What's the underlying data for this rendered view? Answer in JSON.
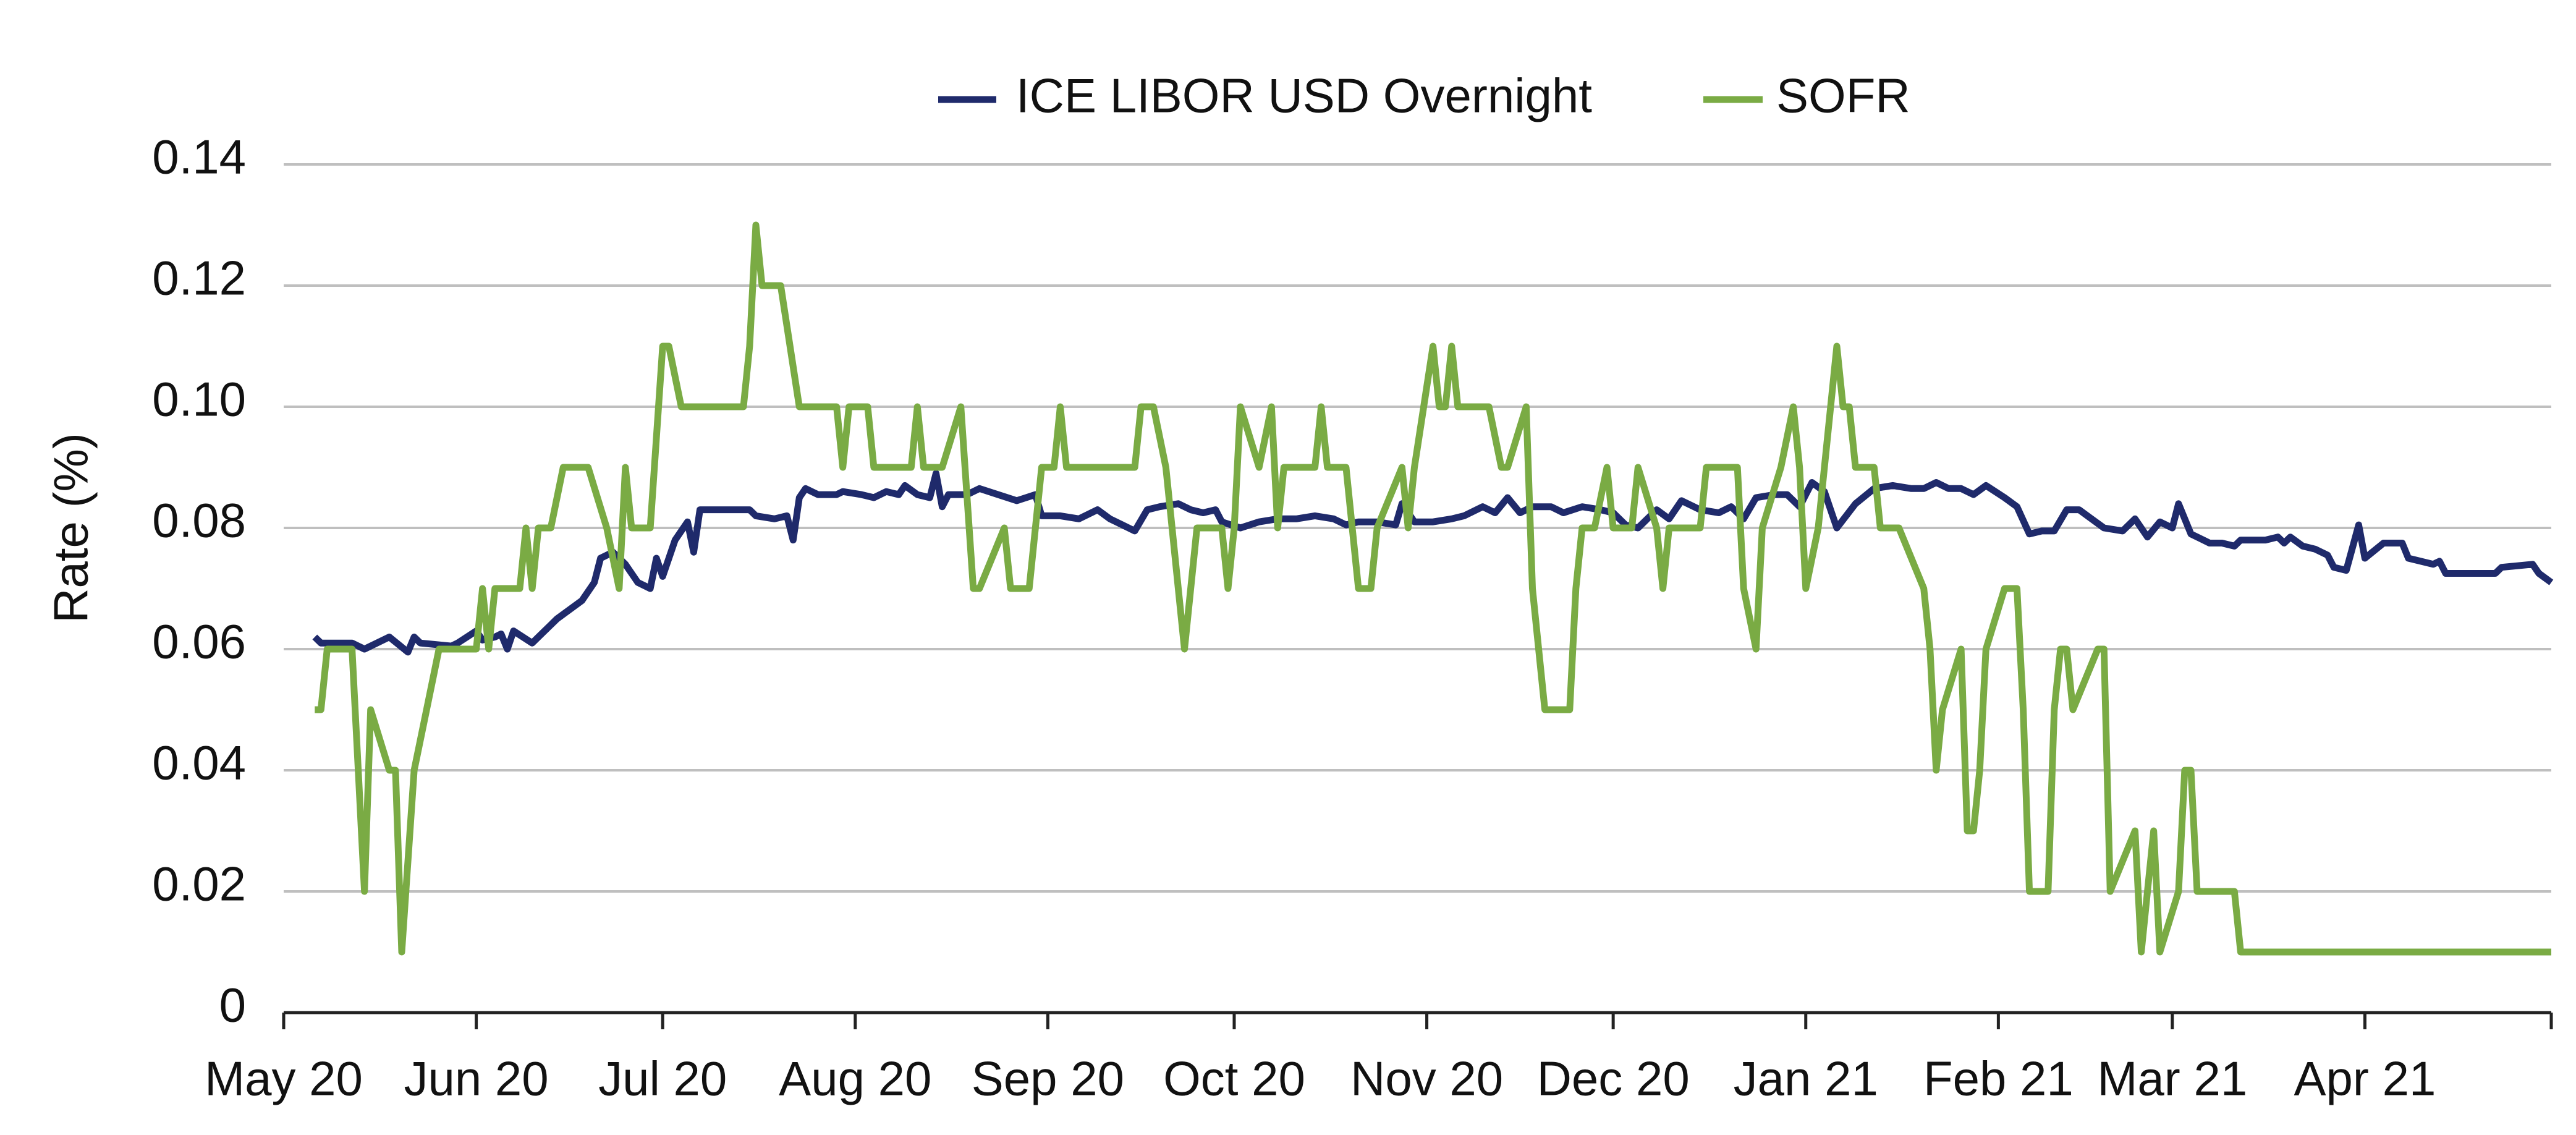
{
  "chart_data": {
    "type": "line",
    "ylabel": "Rate (%)",
    "xlim": [
      0,
      365
    ],
    "xticks": [
      {
        "value": 0,
        "label": "May 20"
      },
      {
        "value": 31,
        "label": "Jun 20"
      },
      {
        "value": 61,
        "label": "Jul 20"
      },
      {
        "value": 92,
        "label": "Aug 20"
      },
      {
        "value": 123,
        "label": "Sep 20"
      },
      {
        "value": 153,
        "label": "Oct 20"
      },
      {
        "value": 184,
        "label": "Nov 20"
      },
      {
        "value": 214,
        "label": "Dec 20"
      },
      {
        "value": 245,
        "label": "Jan 21"
      },
      {
        "value": 276,
        "label": "Feb 21"
      },
      {
        "value": 304,
        "label": "Mar 21"
      },
      {
        "value": 335,
        "label": "Apr 21"
      }
    ],
    "ylim": [
      0,
      0.14
    ],
    "yticks": [
      0,
      0.02,
      0.04,
      0.06,
      0.08,
      {
        "value": 0.1,
        "label": "0.10"
      },
      0.12,
      0.14
    ],
    "grid": true,
    "legend": "top",
    "series": [
      {
        "name": "ICE LIBOR USD Overnight",
        "color": "#1f2a6b",
        "x": [
          5,
          6,
          11,
          13,
          17,
          20,
          21,
          22,
          27,
          28,
          31,
          32,
          34,
          35,
          36,
          37,
          40,
          42,
          44,
          48,
          50,
          51,
          53,
          55,
          57,
          59,
          60,
          61,
          63,
          65,
          66,
          67,
          75,
          76,
          79,
          81,
          82,
          83,
          84,
          86,
          89,
          90,
          93,
          95,
          97,
          99,
          100,
          102,
          104,
          105,
          106,
          107,
          110,
          112,
          115,
          118,
          121,
          122,
          125,
          128,
          131,
          133,
          135,
          137,
          139,
          141,
          144,
          146,
          148,
          150,
          151,
          154,
          157,
          160,
          163,
          166,
          169,
          171,
          173,
          176,
          179,
          180,
          182,
          185,
          188,
          190,
          193,
          195,
          197,
          199,
          201,
          204,
          206,
          209,
          212,
          214,
          216,
          218,
          221,
          223,
          225,
          228,
          231,
          233,
          235,
          237,
          240,
          242,
          244,
          246,
          248,
          250,
          253,
          256,
          259,
          262,
          264,
          266,
          268,
          270,
          272,
          274,
          277,
          279,
          281,
          283,
          285,
          287,
          289,
          291,
          293,
          296,
          298,
          300,
          302,
          304,
          305,
          307,
          310,
          312,
          314,
          315,
          319,
          321,
          322,
          323,
          325,
          327,
          329,
          330,
          332,
          334,
          335,
          338,
          341,
          342,
          346,
          347,
          348,
          356,
          357,
          362,
          363,
          365
        ],
        "values": [
          0.062,
          0.061,
          0.061,
          0.06,
          0.062,
          0.0595,
          0.062,
          0.061,
          0.0605,
          0.061,
          0.063,
          0.0615,
          0.062,
          0.0625,
          0.06,
          0.063,
          0.061,
          0.063,
          0.065,
          0.068,
          0.071,
          0.075,
          0.076,
          0.074,
          0.071,
          0.07,
          0.075,
          0.072,
          0.078,
          0.081,
          0.076,
          0.083,
          0.083,
          0.082,
          0.0815,
          0.082,
          0.078,
          0.085,
          0.0865,
          0.0855,
          0.0855,
          0.086,
          0.0855,
          0.085,
          0.086,
          0.0855,
          0.087,
          0.0855,
          0.085,
          0.089,
          0.0835,
          0.0855,
          0.0855,
          0.0865,
          0.0855,
          0.0845,
          0.0855,
          0.082,
          0.082,
          0.0815,
          0.083,
          0.0815,
          0.0805,
          0.0795,
          0.083,
          0.0835,
          0.084,
          0.083,
          0.0825,
          0.083,
          0.081,
          0.08,
          0.081,
          0.0815,
          0.0815,
          0.082,
          0.0815,
          0.0805,
          0.081,
          0.081,
          0.0805,
          0.084,
          0.081,
          0.081,
          0.0815,
          0.082,
          0.0835,
          0.0825,
          0.085,
          0.0825,
          0.0835,
          0.0835,
          0.0825,
          0.0835,
          0.083,
          0.0825,
          0.0805,
          0.08,
          0.083,
          0.0815,
          0.0845,
          0.083,
          0.0825,
          0.0835,
          0.0815,
          0.085,
          0.0855,
          0.0855,
          0.0835,
          0.0875,
          0.086,
          0.08,
          0.084,
          0.0865,
          0.087,
          0.0865,
          0.0865,
          0.0875,
          0.0865,
          0.0865,
          0.0855,
          0.087,
          0.085,
          0.0835,
          0.079,
          0.0795,
          0.0795,
          0.083,
          0.083,
          0.0815,
          0.08,
          0.0795,
          0.0815,
          0.0785,
          0.081,
          0.08,
          0.084,
          0.079,
          0.0775,
          0.0775,
          0.077,
          0.078,
          0.078,
          0.0785,
          0.0775,
          0.0785,
          0.077,
          0.0765,
          0.0755,
          0.0735,
          0.073,
          0.0805,
          0.075,
          0.0775,
          0.0775,
          0.075,
          0.074,
          0.0745,
          0.0725,
          0.0725,
          0.0735,
          0.074,
          0.0725,
          0.071
        ]
      },
      {
        "name": "SOFR",
        "color": "#7aab44",
        "x": [
          5,
          6,
          7,
          11,
          13,
          14,
          17,
          18,
          19,
          21,
          25,
          31,
          32,
          33,
          34,
          38,
          39,
          40,
          41,
          43,
          45,
          49,
          52,
          54,
          55,
          56,
          59,
          61,
          62,
          64,
          74,
          75,
          76,
          77,
          80,
          83,
          89,
          90,
          91,
          94,
          95,
          101,
          102,
          103,
          106,
          109,
          111,
          112,
          116,
          117,
          120,
          122,
          124,
          125,
          126,
          137,
          138,
          140,
          142,
          145,
          147,
          151,
          152,
          153,
          154,
          157,
          159,
          160,
          161,
          166,
          167,
          168,
          171,
          173,
          175,
          176,
          180,
          181,
          182,
          185,
          186,
          187,
          188,
          189,
          194,
          196,
          197,
          200,
          201,
          203,
          207,
          208,
          209,
          211,
          213,
          214,
          217,
          218,
          221,
          222,
          223,
          228,
          229,
          234,
          235,
          237,
          238,
          241,
          243,
          244,
          245,
          247,
          250,
          251,
          252,
          253,
          256,
          257,
          260,
          264,
          265,
          266,
          267,
          270,
          271,
          272,
          273,
          274,
          277,
          279,
          280,
          281,
          284,
          285,
          286,
          287,
          288,
          292,
          293,
          294,
          298,
          299,
          300,
          301,
          302,
          305,
          306,
          307,
          308,
          314,
          315,
          365
        ],
        "values": [
          0.05,
          0.05,
          0.06,
          0.06,
          0.02,
          0.05,
          0.04,
          0.04,
          0.01,
          0.04,
          0.06,
          0.06,
          0.07,
          0.06,
          0.07,
          0.07,
          0.08,
          0.07,
          0.08,
          0.08,
          0.09,
          0.09,
          0.08,
          0.07,
          0.09,
          0.08,
          0.08,
          0.11,
          0.11,
          0.1,
          0.1,
          0.11,
          0.13,
          0.12,
          0.12,
          0.1,
          0.1,
          0.09,
          0.1,
          0.1,
          0.09,
          0.09,
          0.1,
          0.09,
          0.09,
          0.1,
          0.07,
          0.07,
          0.08,
          0.07,
          0.07,
          0.09,
          0.09,
          0.1,
          0.09,
          0.09,
          0.1,
          0.1,
          0.09,
          0.06,
          0.08,
          0.08,
          0.07,
          0.08,
          0.1,
          0.09,
          0.1,
          0.08,
          0.09,
          0.09,
          0.1,
          0.09,
          0.09,
          0.07,
          0.07,
          0.08,
          0.09,
          0.08,
          0.09,
          0.11,
          0.1,
          0.1,
          0.11,
          0.1,
          0.1,
          0.09,
          0.09,
          0.1,
          0.07,
          0.05,
          0.05,
          0.07,
          0.08,
          0.08,
          0.09,
          0.08,
          0.08,
          0.09,
          0.08,
          0.07,
          0.08,
          0.08,
          0.09,
          0.09,
          0.07,
          0.06,
          0.08,
          0.09,
          0.1,
          0.09,
          0.07,
          0.08,
          0.11,
          0.1,
          0.1,
          0.09,
          0.09,
          0.08,
          0.08,
          0.07,
          0.06,
          0.04,
          0.05,
          0.06,
          0.03,
          0.03,
          0.04,
          0.06,
          0.07,
          0.07,
          0.05,
          0.02,
          0.02,
          0.05,
          0.06,
          0.06,
          0.05,
          0.06,
          0.06,
          0.02,
          0.03,
          0.01,
          0.02,
          0.03,
          0.01,
          0.02,
          0.04,
          0.04,
          0.02,
          0.02,
          0.01,
          0.01
        ]
      }
    ]
  }
}
